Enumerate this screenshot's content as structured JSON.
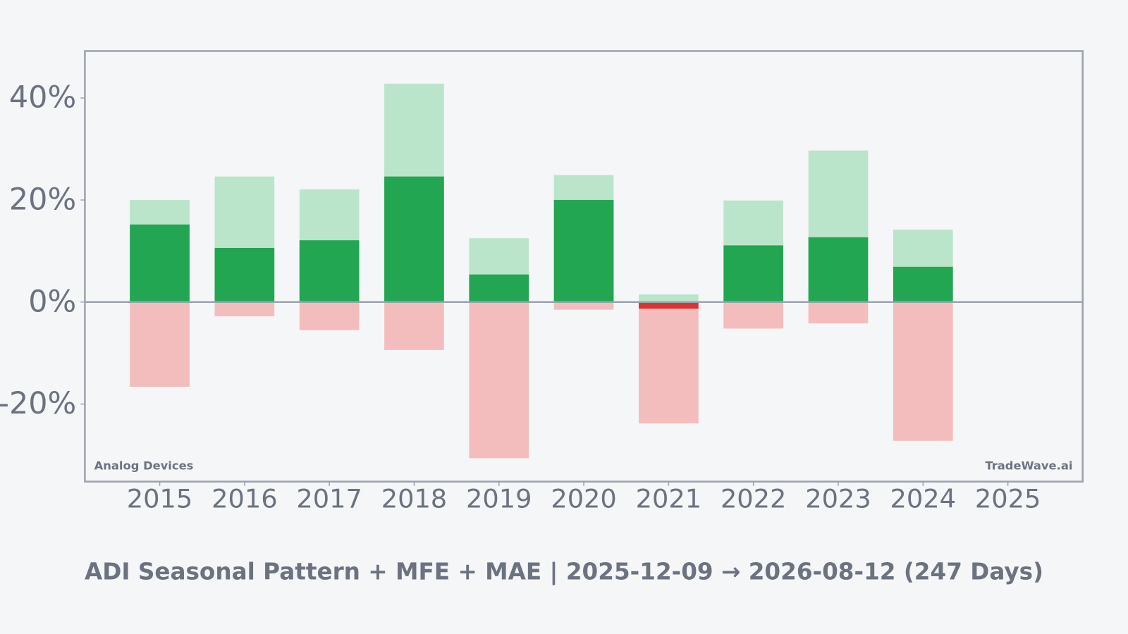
{
  "chart_data": {
    "type": "bar",
    "title": "ADI Seasonal Pattern + MFE + MAE | 2025-12-09 → 2026-08-12 (247 Days)",
    "annotations": [
      "Analog Devices",
      "TradeWave.ai"
    ],
    "categories": [
      "2015",
      "2016",
      "2017",
      "2018",
      "2019",
      "2020",
      "2021",
      "2022",
      "2023",
      "2024",
      "2025"
    ],
    "series": [
      {
        "color": "#bbe5ca",
        "values": [
          20.0,
          24.6,
          22.1,
          42.8,
          12.5,
          24.9,
          1.5,
          19.9,
          29.7,
          14.2,
          null
        ]
      },
      {
        "color": "#f3bdbd",
        "values": [
          -16.6,
          -2.8,
          -5.5,
          -9.4,
          -30.6,
          -1.5,
          -23.8,
          -5.2,
          -4.2,
          -27.2,
          null
        ]
      },
      {
        "values": [
          15.2,
          10.6,
          12.1,
          24.6,
          5.4,
          20.0,
          -1.3,
          11.1,
          12.7,
          6.9,
          null
        ],
        "positive_color": "#22a652",
        "negative_color": "#dc3232"
      }
    ],
    "ylim": [
      -35.2,
      49.2
    ],
    "yticks": [
      {
        "value": -20,
        "label": "-20%"
      },
      {
        "value": 0,
        "label": "0%"
      },
      {
        "value": 20,
        "label": "20%"
      },
      {
        "value": 40,
        "label": "40%"
      }
    ]
  }
}
